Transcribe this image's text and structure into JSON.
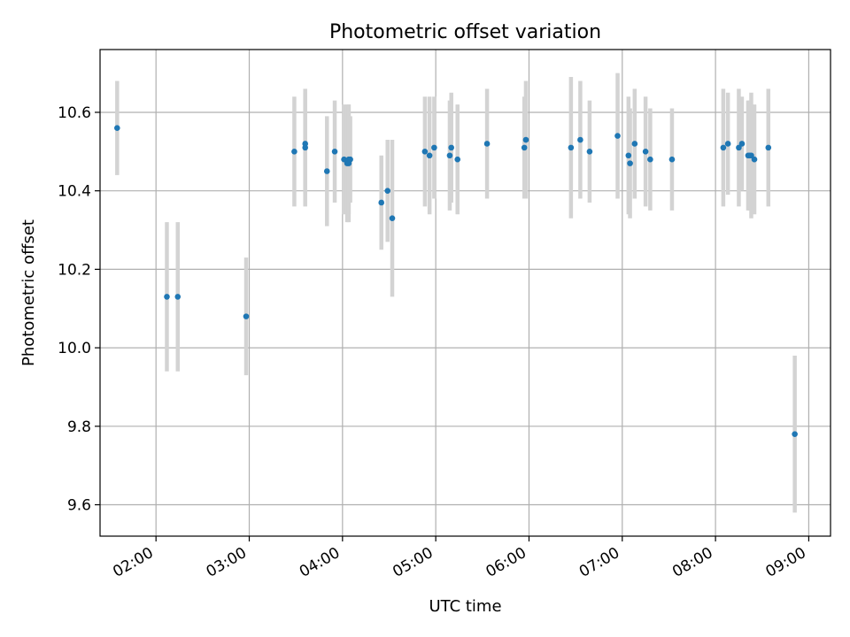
{
  "chart_data": {
    "type": "scatter",
    "title": "Photometric offset variation",
    "xlabel": "UTC time",
    "ylabel": "Photometric offset",
    "xlim": [
      "01:24",
      "09:14"
    ],
    "ylim": [
      9.52,
      10.76
    ],
    "grid": true,
    "x_ticks": [
      "02:00",
      "03:00",
      "04:00",
      "05:00",
      "06:00",
      "07:00",
      "08:00",
      "09:00"
    ],
    "y_ticks": [
      "9.6",
      "9.8",
      "10.0",
      "10.2",
      "10.4",
      "10.6"
    ],
    "colors": {
      "points": "#1f77b4",
      "errorbars": "#d3d3d3",
      "grid": "#b0b0b0"
    },
    "series": [
      {
        "x": [
          "01:35",
          "02:07",
          "02:14",
          "02:58",
          "03:29",
          "03:36",
          "03:36",
          "03:50",
          "03:55",
          "04:01",
          "04:03",
          "04:04",
          "04:04",
          "04:05",
          "04:25",
          "04:29",
          "04:32",
          "04:53",
          "04:56",
          "04:59",
          "05:09",
          "05:10",
          "05:14",
          "05:33",
          "05:57",
          "05:58",
          "06:27",
          "06:33",
          "06:39",
          "06:57",
          "07:04",
          "07:05",
          "07:08",
          "07:15",
          "07:18",
          "07:32",
          "08:05",
          "08:08",
          "08:15",
          "08:17",
          "08:21",
          "08:22",
          "08:23",
          "08:25",
          "08:34",
          "08:51"
        ],
        "y": [
          10.56,
          10.13,
          10.13,
          10.08,
          10.5,
          10.52,
          10.51,
          10.45,
          10.5,
          10.48,
          10.47,
          10.48,
          10.47,
          10.48,
          10.37,
          10.4,
          10.33,
          10.5,
          10.49,
          10.51,
          10.49,
          10.51,
          10.48,
          10.52,
          10.51,
          10.53,
          10.51,
          10.53,
          10.5,
          10.54,
          10.49,
          10.47,
          10.52,
          10.5,
          10.48,
          10.48,
          10.51,
          10.52,
          10.51,
          10.52,
          10.49,
          10.49,
          10.49,
          10.48,
          10.51,
          9.78
        ],
        "err": [
          0.12,
          0.19,
          0.19,
          0.15,
          0.14,
          0.13,
          0.15,
          0.14,
          0.13,
          0.14,
          0.15,
          0.14,
          0.15,
          0.11,
          0.12,
          0.13,
          0.2,
          0.14,
          0.15,
          0.13,
          0.14,
          0.14,
          0.14,
          0.14,
          0.13,
          0.15,
          0.18,
          0.15,
          0.13,
          0.16,
          0.15,
          0.14,
          0.14,
          0.14,
          0.13,
          0.13,
          0.15,
          0.13,
          0.15,
          0.12,
          0.14,
          0.14,
          0.16,
          0.14,
          0.15,
          0.2
        ]
      }
    ]
  }
}
